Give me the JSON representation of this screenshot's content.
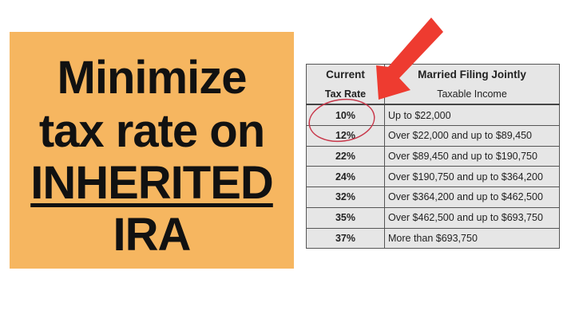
{
  "headline": {
    "lines": [
      "Minimize",
      "tax rate on",
      "INHERITED",
      "IRA"
    ],
    "background": "#F6B660"
  },
  "table": {
    "header": {
      "col1_top": "Current",
      "col1_bottom": "Tax Rate",
      "col2_top": "Married Filing Jointly",
      "col2_bottom": "Taxable Income"
    },
    "rows": [
      {
        "rate": "10%",
        "income": "Up to $22,000"
      },
      {
        "rate": "12%",
        "income": "Over $22,000 and up to $89,450"
      },
      {
        "rate": "22%",
        "income": "Over $89,450 and up to $190,750"
      },
      {
        "rate": "24%",
        "income": "Over $190,750 and up to $364,200"
      },
      {
        "rate": "32%",
        "income": "Over $364,200 and up to $462,500"
      },
      {
        "rate": "35%",
        "income": "Over $462,500 and up to $693,750"
      },
      {
        "rate": "37%",
        "income": "More than $693,750"
      }
    ]
  },
  "annotations": {
    "arrow_color": "#EE3B30",
    "circle_color": "#C8374A",
    "icon": "arrow-icon"
  }
}
